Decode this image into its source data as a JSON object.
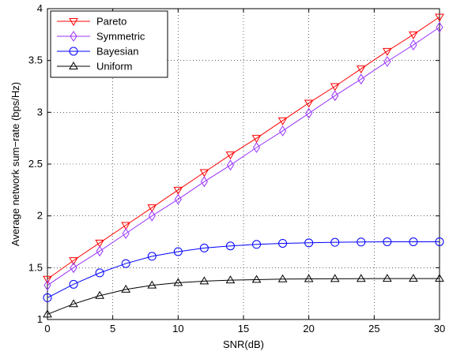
{
  "chart_data": {
    "type": "line",
    "title": "",
    "xlabel": "SNR(dB)",
    "ylabel": "Average network sum−rate (bps/Hz)",
    "xlim": [
      0,
      30
    ],
    "ylim": [
      1,
      4
    ],
    "xticks": [
      0,
      5,
      10,
      15,
      20,
      25,
      30
    ],
    "xtick_labels": [
      "0",
      "5",
      "10",
      "15",
      "20",
      "25",
      "30"
    ],
    "yticks": [
      1,
      1.5,
      2,
      2.5,
      3,
      3.5,
      4
    ],
    "ytick_labels": [
      "1",
      "1.5",
      "2",
      "2.5",
      "3",
      "3.5",
      "4"
    ],
    "grid": true,
    "legend_position": "top-left",
    "x": [
      0,
      2,
      4,
      6,
      8,
      10,
      12,
      14,
      16,
      18,
      20,
      22,
      24,
      26,
      28,
      30
    ],
    "series": [
      {
        "name": "Pareto",
        "color": "#ff0000",
        "marker": "triangle-down",
        "values": [
          1.39,
          1.57,
          1.74,
          1.91,
          2.08,
          2.25,
          2.42,
          2.59,
          2.75,
          2.92,
          3.09,
          3.25,
          3.42,
          3.59,
          3.75,
          3.92
        ]
      },
      {
        "name": "Symmetric",
        "color": "#9933ff",
        "marker": "diamond",
        "values": [
          1.33,
          1.5,
          1.66,
          1.83,
          2.0,
          2.16,
          2.33,
          2.49,
          2.66,
          2.82,
          2.99,
          3.16,
          3.32,
          3.49,
          3.65,
          3.82
        ]
      },
      {
        "name": "Bayesian",
        "color": "#0000ff",
        "marker": "circle",
        "values": [
          1.21,
          1.34,
          1.45,
          1.54,
          1.61,
          1.655,
          1.69,
          1.71,
          1.725,
          1.735,
          1.74,
          1.745,
          1.748,
          1.75,
          1.75,
          1.75
        ]
      },
      {
        "name": "Uniform",
        "color": "#000000",
        "marker": "triangle-up",
        "values": [
          1.05,
          1.15,
          1.23,
          1.29,
          1.33,
          1.355,
          1.37,
          1.38,
          1.385,
          1.39,
          1.392,
          1.393,
          1.394,
          1.395,
          1.395,
          1.395
        ]
      }
    ]
  }
}
